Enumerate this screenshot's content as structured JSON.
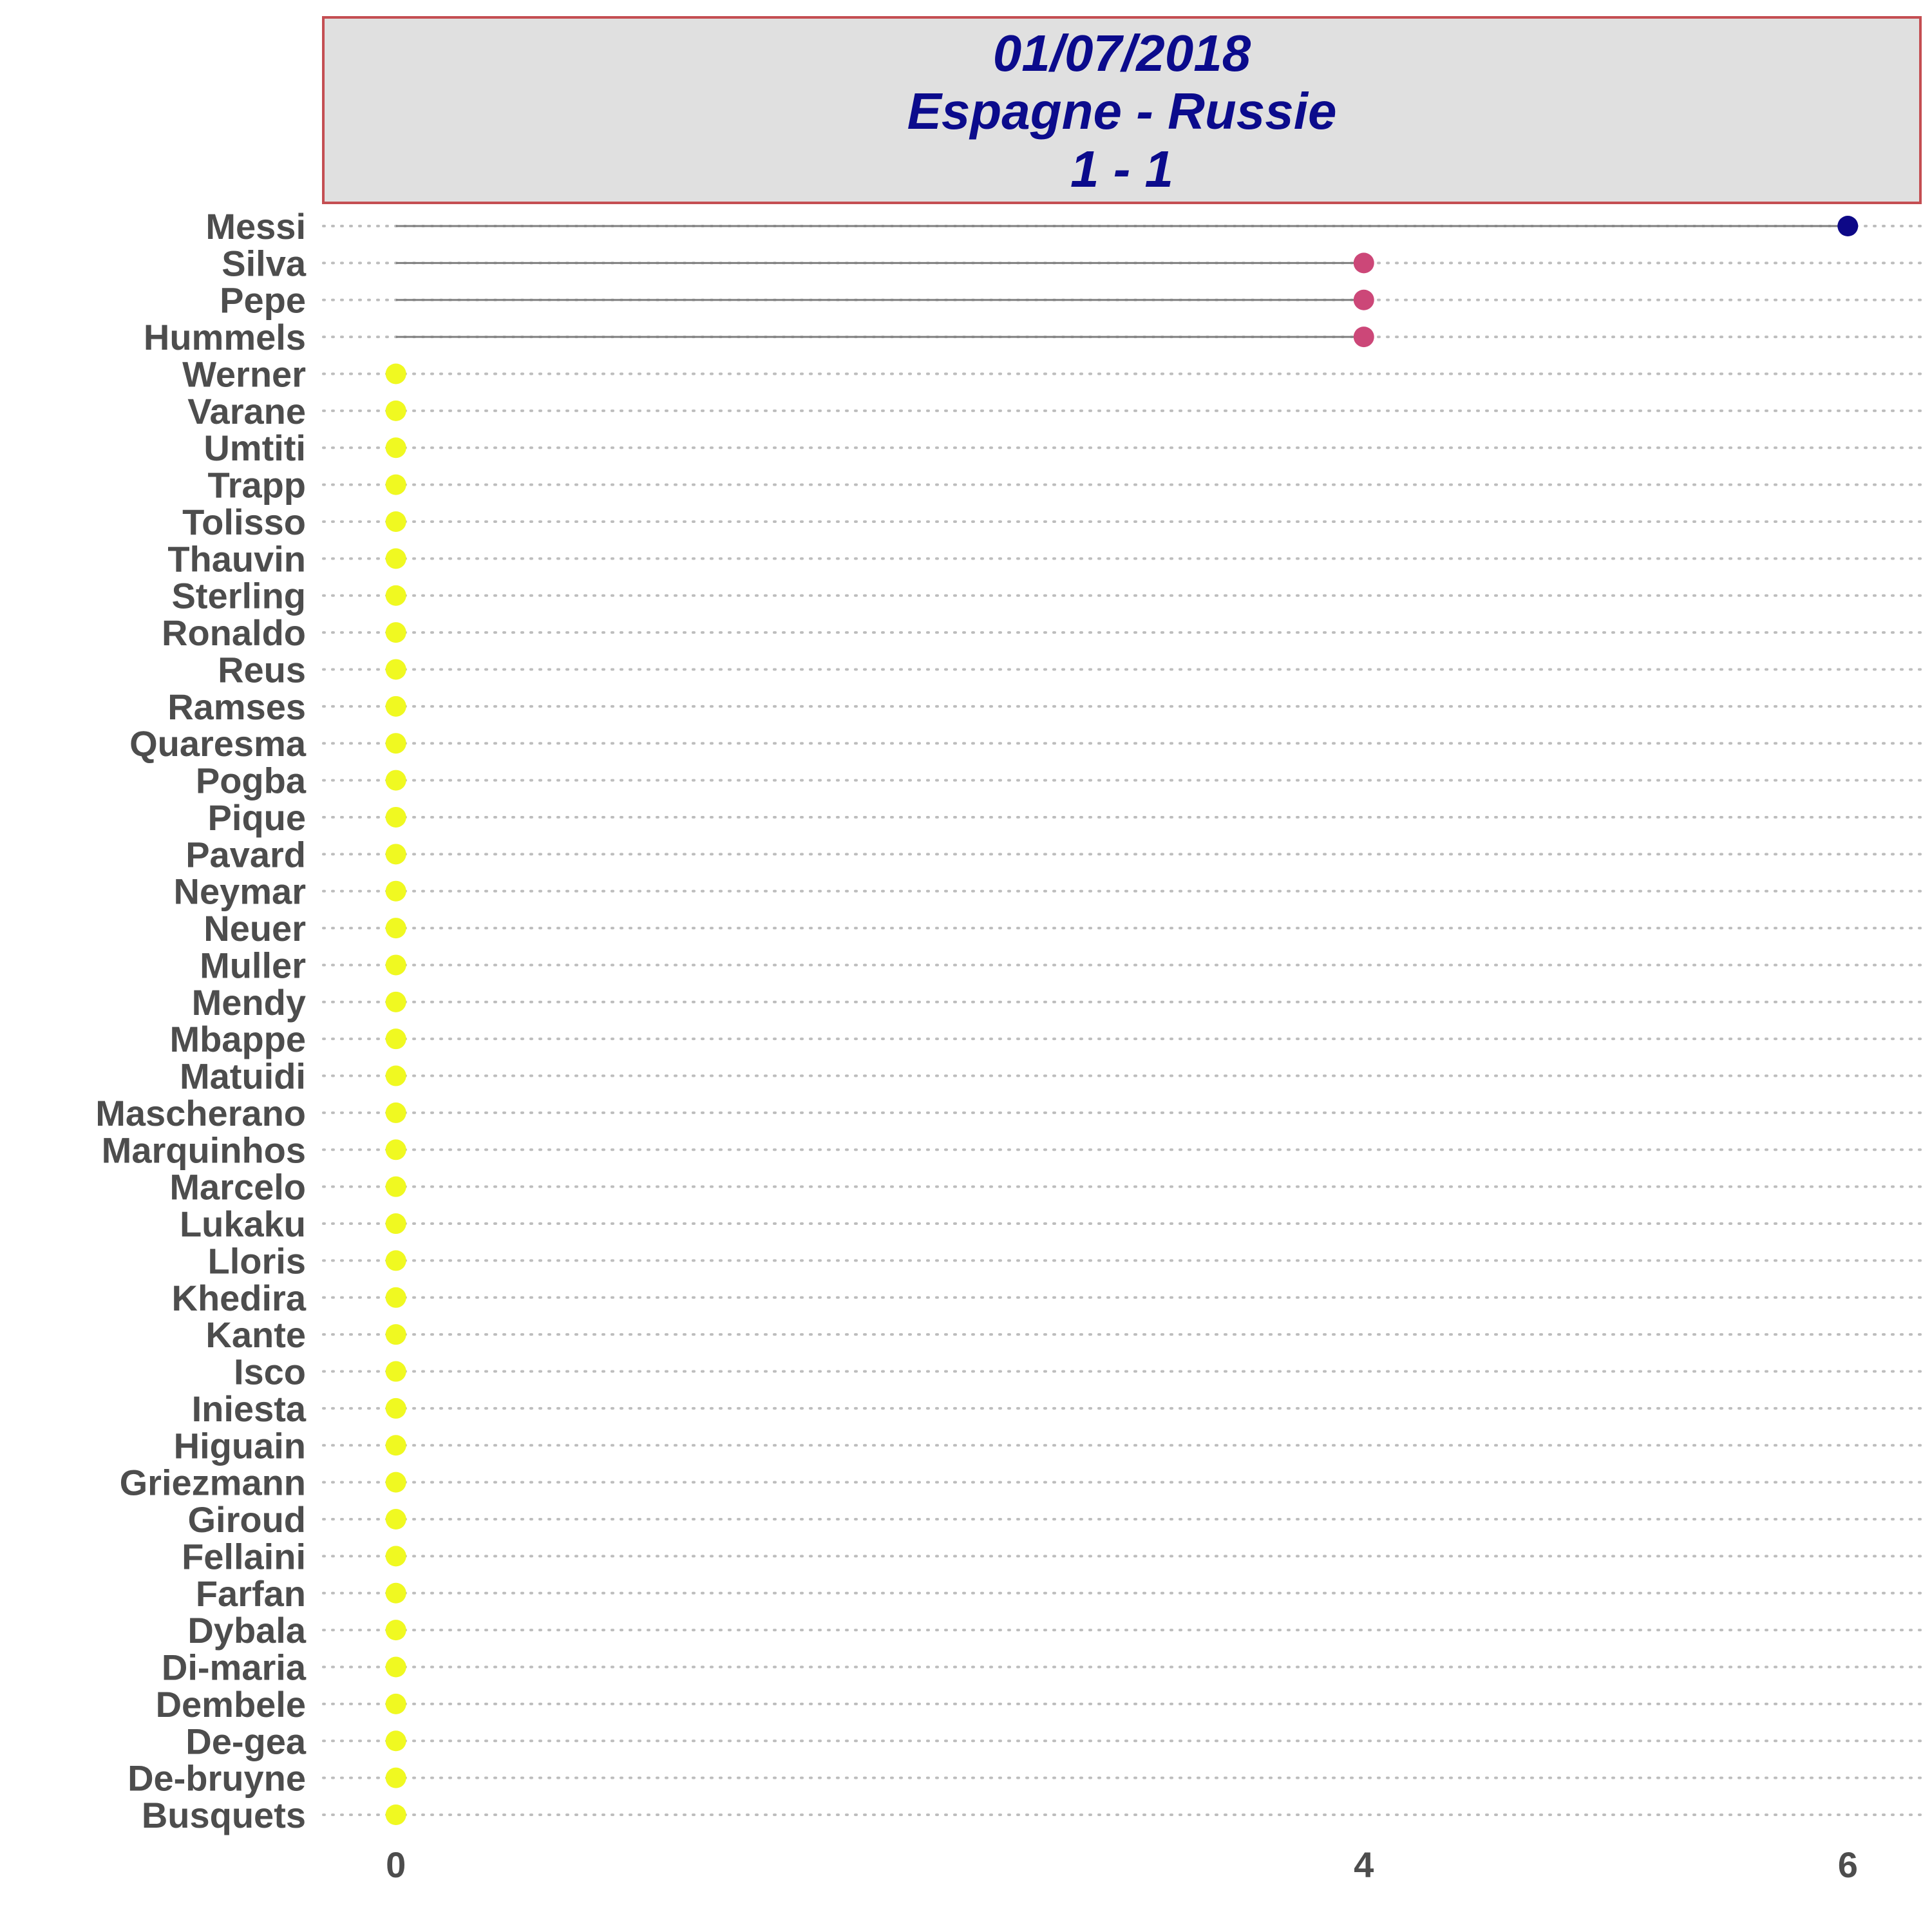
{
  "chart_data": {
    "type": "lollipop",
    "title": [
      "01/07/2018",
      "Espagne - Russie",
      "1 - 1"
    ],
    "xlabel": "",
    "ylabel": "",
    "xlim": [
      -0.3,
      6.3
    ],
    "x_ticks": [
      0,
      4,
      6
    ],
    "grid": "dotted horizontal",
    "colors": {
      "title_text": "#0b0b8c",
      "title_fill": "#e0e0e0",
      "title_border": "#c44e52",
      "high": "#0d0887",
      "mid": "#cc4778",
      "low": "#f0f921",
      "stem": "#808080",
      "grid": "#bdbdbd"
    },
    "categories": [
      "Messi",
      "Silva",
      "Pepe",
      "Hummels",
      "Werner",
      "Varane",
      "Umtiti",
      "Trapp",
      "Tolisso",
      "Thauvin",
      "Sterling",
      "Ronaldo",
      "Reus",
      "Ramses",
      "Quaresma",
      "Pogba",
      "Pique",
      "Pavard",
      "Neymar",
      "Neuer",
      "Muller",
      "Mendy",
      "Mbappe",
      "Matuidi",
      "Mascherano",
      "Marquinhos",
      "Marcelo",
      "Lukaku",
      "Lloris",
      "Khedira",
      "Kante",
      "Isco",
      "Iniesta",
      "Higuain",
      "Griezmann",
      "Giroud",
      "Fellaini",
      "Farfan",
      "Dybala",
      "Di-maria",
      "Dembele",
      "De-gea",
      "De-bruyne",
      "Busquets"
    ],
    "values": [
      6,
      4,
      4,
      4,
      0,
      0,
      0,
      0,
      0,
      0,
      0,
      0,
      0,
      0,
      0,
      0,
      0,
      0,
      0,
      0,
      0,
      0,
      0,
      0,
      0,
      0,
      0,
      0,
      0,
      0,
      0,
      0,
      0,
      0,
      0,
      0,
      0,
      0,
      0,
      0,
      0,
      0,
      0,
      0
    ]
  }
}
